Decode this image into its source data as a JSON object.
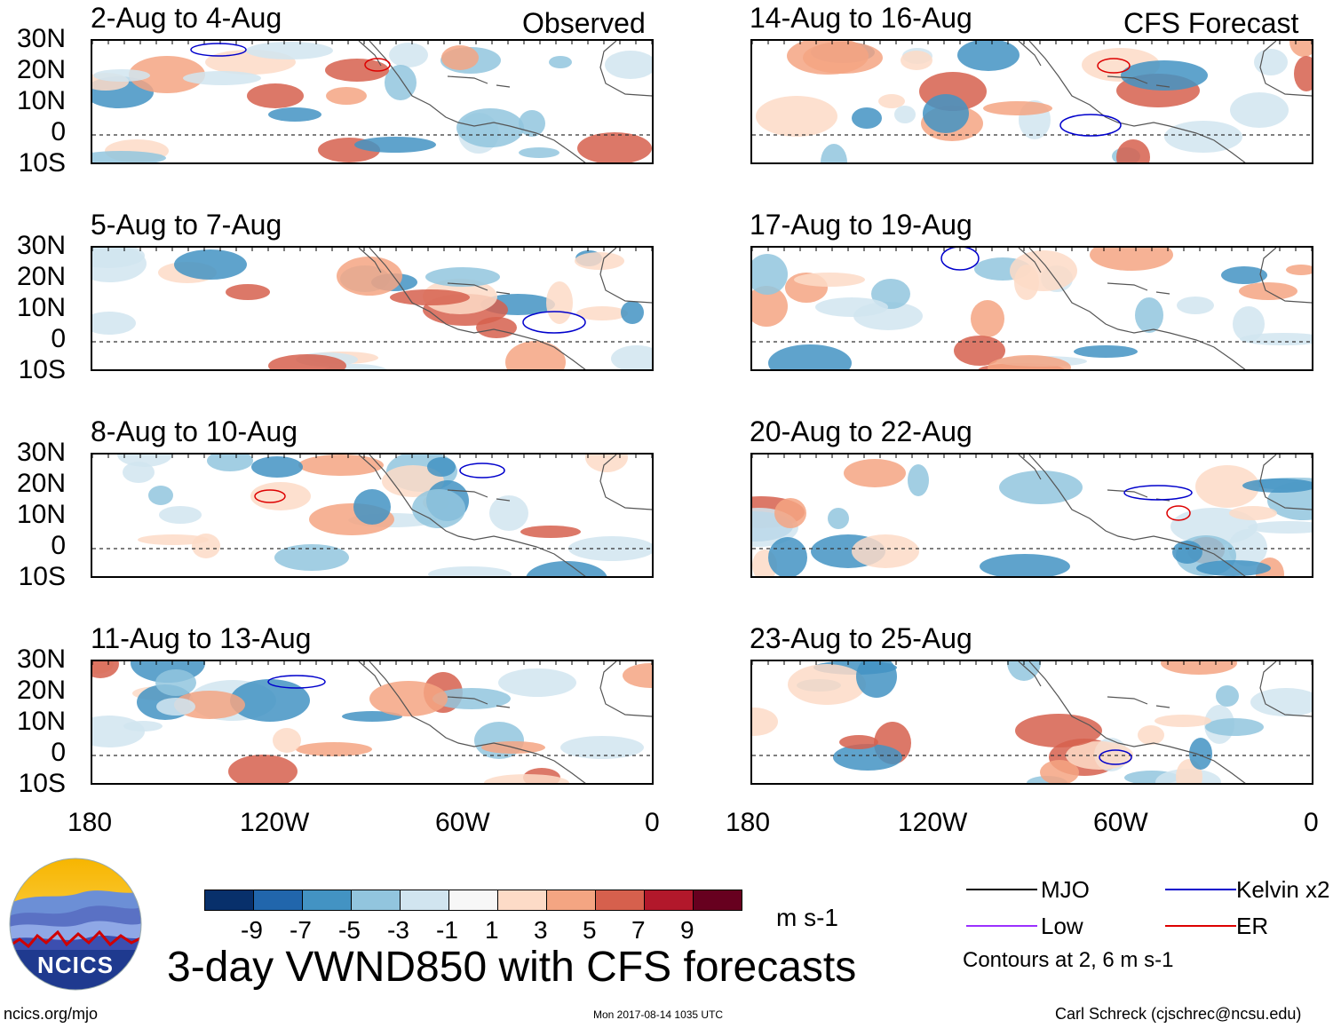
{
  "corner_labels": {
    "observed": "Observed",
    "forecast": "CFS Forecast"
  },
  "panels_left": [
    {
      "title": "2-Aug to 4-Aug"
    },
    {
      "title": "5-Aug to 7-Aug"
    },
    {
      "title": "8-Aug to 10-Aug"
    },
    {
      "title": "11-Aug to 13-Aug"
    }
  ],
  "panels_right": [
    {
      "title": "14-Aug to 16-Aug"
    },
    {
      "title": "17-Aug to 19-Aug"
    },
    {
      "title": "20-Aug to 22-Aug"
    },
    {
      "title": "23-Aug to 25-Aug"
    }
  ],
  "lat_labels": [
    "30N",
    "20N",
    "10N",
    "0",
    "10S"
  ],
  "lon_labels": [
    "180",
    "120W",
    "60W",
    "0"
  ],
  "colorbar": {
    "colors": [
      "#08306b",
      "#2166ac",
      "#4393c3",
      "#92c5de",
      "#d1e5f0",
      "#f7f7f7",
      "#fddbc7",
      "#f4a582",
      "#d6604d",
      "#b2182b",
      "#67001f"
    ],
    "ticks": [
      "-9",
      "-7",
      "-5",
      "-3",
      "-1",
      "1",
      "3",
      "5",
      "7",
      "9"
    ],
    "units": "m s-1"
  },
  "legend": {
    "mjo": {
      "label": "MJO",
      "color": "#000000"
    },
    "kelvin": {
      "label": "Kelvin x2",
      "color": "#0000cc"
    },
    "low": {
      "label": "Low",
      "color": "#9b30ff"
    },
    "er": {
      "label": "ER",
      "color": "#dd0000"
    },
    "note": "Contours at 2, 6 m s-1"
  },
  "logo": {
    "text": "NCICS"
  },
  "main_title": "3-day VWND850 with CFS forecasts",
  "footer": {
    "url": "ncics.org/mjo",
    "timestamp": "Mon 2017-08-14 1035 UTC",
    "credit": "Carl Schreck (cjschrec@ncsu.edu)"
  }
}
